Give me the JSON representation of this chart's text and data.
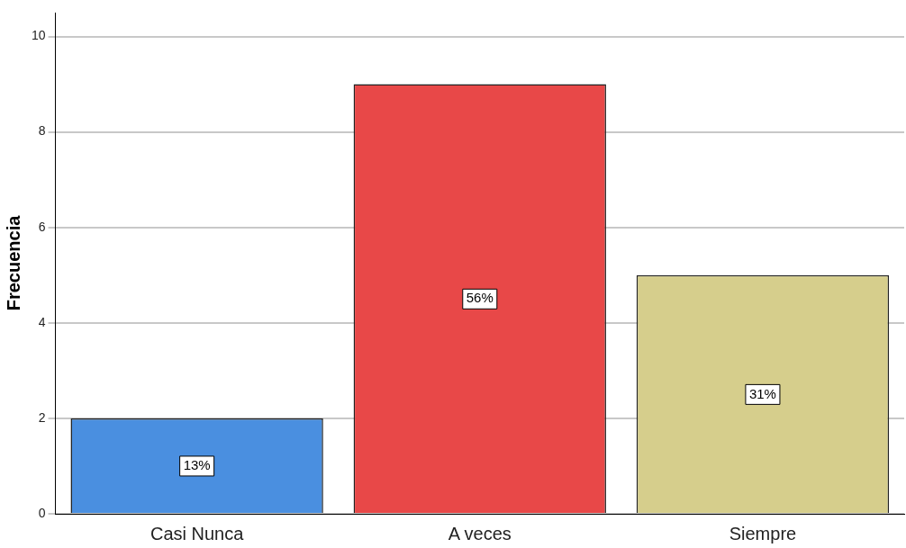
{
  "chart_data": {
    "type": "bar",
    "ylabel": "Frecuencia",
    "categories": [
      "Casi Nunca",
      "A veces",
      "Siempre"
    ],
    "values": [
      2,
      9,
      5
    ],
    "colors": [
      "#4a8fe0",
      "#e84848",
      "#d6ce8c"
    ],
    "annotations": [
      {
        "text": "13%",
        "x": "Casi Nunca",
        "y": 1
      },
      {
        "text": "56%",
        "x": "A veces",
        "y": 4.5
      },
      {
        "text": "31%",
        "x": "Siempre",
        "y": 2.5
      }
    ],
    "ylim": [
      0,
      10.5
    ],
    "yticks": [
      0,
      2,
      4,
      6,
      8,
      10
    ],
    "grid": "y",
    "legend": false
  }
}
